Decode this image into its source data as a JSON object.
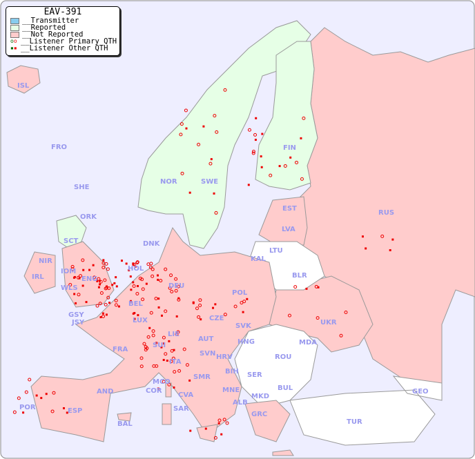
{
  "legend": {
    "title": "EAV-391",
    "items": [
      {
        "label": "__Transmitter",
        "color": "#88ccee"
      },
      {
        "label": "__Reported",
        "color": "#e6ffe6"
      },
      {
        "label": "__Not Reported",
        "color": "#ffcccc"
      },
      {
        "label": "__Listener Primary QTH",
        "colors": [
          "#006600",
          "#ee0000"
        ]
      },
      {
        "label": "__Listener Other QTH",
        "colors": [
          "#006600",
          "#ee0000"
        ]
      }
    ]
  },
  "colors": {
    "sea": "#eeeeff",
    "reported": "#e6ffe6",
    "not_reported": "#ffcccc",
    "no_data": "#ffffff",
    "marker": "#ee0000",
    "marker_reported": "#006600",
    "label": "#9999ee"
  },
  "countries": [
    "ISL",
    "FRO",
    "SHE",
    "ORK",
    "NOR",
    "SWE",
    "FIN",
    "RUS",
    "EST",
    "LVA",
    "LTU",
    "KAL",
    "BLR",
    "DNK",
    "SCT",
    "NIR",
    "IRL",
    "IOM",
    "ENG",
    "WLS",
    "HOL",
    "BEL",
    "DEU",
    "POL",
    "UKR",
    "GSY",
    "JSY",
    "LUX",
    "CZE",
    "SVK",
    "FRA",
    "SUI",
    "LIE",
    "AUT",
    "HNG",
    "MDA",
    "SVN",
    "HRV",
    "ROU",
    "ITA",
    "BIH",
    "SER",
    "MCO",
    "COR",
    "SMR",
    "CVA",
    "MNE",
    "BUL",
    "AND",
    "ALB",
    "MKD",
    "POR",
    "ESP",
    "SAR",
    "GRC",
    "BAL",
    "GEO",
    "TUR"
  ]
}
